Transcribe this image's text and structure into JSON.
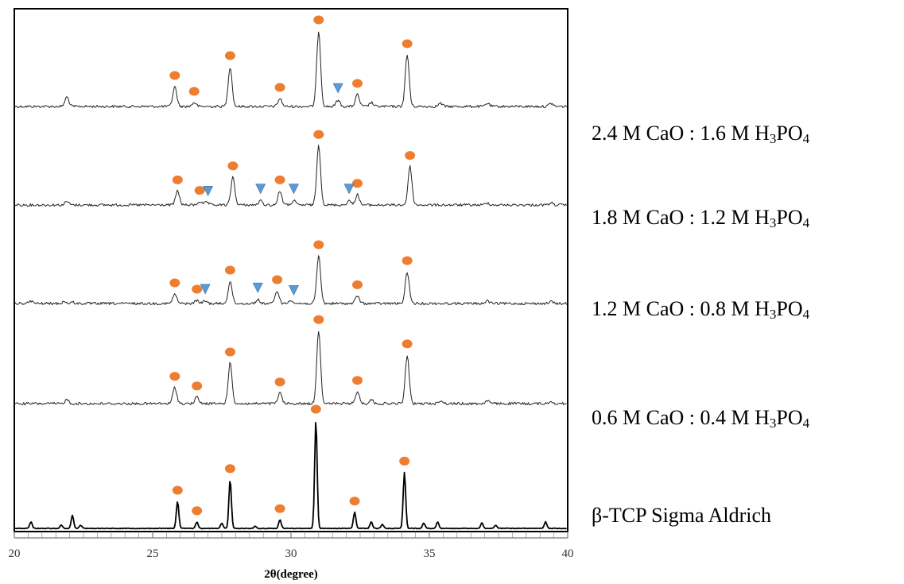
{
  "chart_data": {
    "type": "line",
    "xlabel": "2θ(degree)",
    "ylabel": "",
    "xlim": [
      20,
      40
    ],
    "xticks": [
      "20",
      "25",
      "30",
      "35",
      "40"
    ],
    "grid": false,
    "marker_legend": {
      "circle_color": "#ED7D31",
      "triangle_color": "#5B9BD5"
    },
    "series": [
      {
        "label": {
          "main": "2.4 M CaO  : 1.6 M H",
          "sub1": "3",
          "mid": "PO",
          "sub2": "4"
        },
        "peaks": [
          [
            21.9,
            0.12
          ],
          [
            25.8,
            0.25
          ],
          [
            26.5,
            0.05
          ],
          [
            27.8,
            0.5
          ],
          [
            29.6,
            0.1
          ],
          [
            31.0,
            0.95
          ],
          [
            31.7,
            0.08
          ],
          [
            32.4,
            0.15
          ],
          [
            32.9,
            0.05
          ],
          [
            34.2,
            0.65
          ],
          [
            35.4,
            0.04
          ],
          [
            37.1,
            0.04
          ],
          [
            39.4,
            0.04
          ]
        ],
        "circle_markers": [
          25.8,
          26.5,
          27.8,
          29.6,
          31.0,
          32.4,
          34.2
        ],
        "triangle_markers": [
          31.7
        ]
      },
      {
        "label": {
          "main": "1.8 M CaO  : 1.2 M H",
          "sub1": "3",
          "mid": "PO",
          "sub2": "4"
        },
        "peaks": [
          [
            21.9,
            0.05
          ],
          [
            25.9,
            0.2
          ],
          [
            26.7,
            0.05
          ],
          [
            26.95,
            0.04
          ],
          [
            27.9,
            0.4
          ],
          [
            28.9,
            0.06
          ],
          [
            29.6,
            0.2
          ],
          [
            30.1,
            0.06
          ],
          [
            31.0,
            0.85
          ],
          [
            32.1,
            0.06
          ],
          [
            32.4,
            0.15
          ],
          [
            34.3,
            0.55
          ],
          [
            37.1,
            0.03
          ],
          [
            39.4,
            0.03
          ]
        ],
        "circle_markers": [
          25.9,
          26.7,
          27.9,
          29.6,
          31.0,
          32.4,
          34.3
        ],
        "triangle_markers": [
          27.0,
          28.9,
          30.1,
          32.1
        ]
      },
      {
        "label": {
          "main": "1.2 M CaO  : 0.8 M H",
          "sub1": "3",
          "mid": "PO",
          "sub2": "4"
        },
        "peaks": [
          [
            20.6,
            0.04
          ],
          [
            21.8,
            0.03
          ],
          [
            22.1,
            0.02
          ],
          [
            25.8,
            0.15
          ],
          [
            26.6,
            0.05
          ],
          [
            26.9,
            0.04
          ],
          [
            27.8,
            0.35
          ],
          [
            28.8,
            0.06
          ],
          [
            29.5,
            0.2
          ],
          [
            30.0,
            0.06
          ],
          [
            31.0,
            0.75
          ],
          [
            32.4,
            0.12
          ],
          [
            34.2,
            0.5
          ],
          [
            37.1,
            0.04
          ],
          [
            39.4,
            0.03
          ]
        ],
        "circle_markers": [
          25.8,
          26.6,
          27.8,
          29.5,
          31.0,
          32.4,
          34.2
        ],
        "triangle_markers": [
          26.9,
          28.8,
          30.1
        ]
      },
      {
        "label": {
          "main": "0.6 M CaO  : 0.4 M H",
          "sub1": "3",
          "mid": "PO",
          "sub2": "4"
        },
        "peaks": [
          [
            21.9,
            0.05
          ],
          [
            25.8,
            0.2
          ],
          [
            26.6,
            0.08
          ],
          [
            27.8,
            0.5
          ],
          [
            29.6,
            0.13
          ],
          [
            31.0,
            0.9
          ],
          [
            32.4,
            0.15
          ],
          [
            32.9,
            0.05
          ],
          [
            34.2,
            0.6
          ],
          [
            35.4,
            0.04
          ],
          [
            37.1,
            0.04
          ],
          [
            39.4,
            0.03
          ]
        ],
        "circle_markers": [
          25.8,
          26.6,
          27.8,
          29.6,
          31.0,
          32.4,
          34.2
        ],
        "triangle_markers": []
      },
      {
        "label": {
          "main": "β-TCP Sigma Aldrich",
          "sub1": "",
          "mid": "",
          "sub2": ""
        },
        "peaks": [
          [
            20.6,
            0.06
          ],
          [
            21.7,
            0.03
          ],
          [
            22.1,
            0.12
          ],
          [
            22.4,
            0.03
          ],
          [
            25.9,
            0.25
          ],
          [
            26.6,
            0.06
          ],
          [
            27.5,
            0.05
          ],
          [
            27.8,
            0.45
          ],
          [
            28.7,
            0.02
          ],
          [
            29.6,
            0.08
          ],
          [
            30.9,
            1.0
          ],
          [
            32.3,
            0.15
          ],
          [
            32.9,
            0.06
          ],
          [
            33.3,
            0.04
          ],
          [
            34.1,
            0.52
          ],
          [
            34.8,
            0.05
          ],
          [
            35.3,
            0.06
          ],
          [
            36.9,
            0.05
          ],
          [
            37.4,
            0.03
          ],
          [
            39.2,
            0.06
          ]
        ],
        "circle_markers": [
          25.9,
          26.6,
          27.8,
          29.6,
          30.9,
          32.3,
          34.1
        ],
        "triangle_markers": []
      }
    ]
  }
}
